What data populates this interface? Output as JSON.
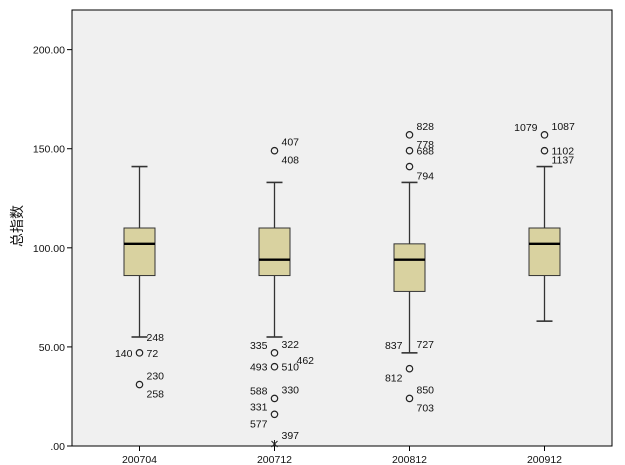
{
  "chart_data": {
    "type": "boxplot",
    "title": "",
    "xlabel": "",
    "ylabel": "总指数",
    "ylim": [
      0,
      220
    ],
    "yticks": [
      0,
      50,
      100,
      150,
      200
    ],
    "ytick_labels": [
      ".00",
      "50.00",
      "100.00",
      "150.00",
      "200.00"
    ],
    "colors": {
      "box_fill": "#d9d2a0",
      "box_stroke": "#333333",
      "median": "#000000",
      "plot_bg": "#f0f0f0"
    },
    "groups": [
      {
        "category": "200704",
        "whisker_low": 55,
        "q1": 86,
        "median": 102,
        "q3": 110,
        "whisker_high": 141,
        "outliers": [
          {
            "y": 55,
            "label": "248",
            "kind": "point",
            "side": "right"
          },
          {
            "y": 47,
            "label": "140",
            "kind": "circle",
            "side": "left"
          },
          {
            "y": 47,
            "label": "72",
            "kind": "point",
            "side": "right"
          },
          {
            "y": 31,
            "label": "230",
            "kind": "circle",
            "side": "right-up"
          },
          {
            "y": 31,
            "label": "258",
            "kind": "point",
            "side": "right-down"
          }
        ]
      },
      {
        "category": "200712",
        "whisker_low": 55,
        "q1": 86,
        "median": 94,
        "q3": 110,
        "whisker_high": 133,
        "outliers": [
          {
            "y": 149,
            "label": "407",
            "kind": "circle",
            "side": "right-up"
          },
          {
            "y": 149,
            "label": "408",
            "kind": "point",
            "side": "right-down"
          },
          {
            "y": 47,
            "label": "335",
            "kind": "circle",
            "side": "left-up"
          },
          {
            "y": 47,
            "label": "322",
            "kind": "point",
            "side": "right-up"
          },
          {
            "y": 47,
            "label": "462",
            "kind": "point",
            "side": "far-right"
          },
          {
            "y": 40,
            "label": "493",
            "kind": "point",
            "side": "left"
          },
          {
            "y": 40,
            "label": "510",
            "kind": "circle",
            "side": "right"
          },
          {
            "y": 24,
            "label": "588",
            "kind": "circle",
            "side": "left-up"
          },
          {
            "y": 24,
            "label": "330",
            "kind": "point",
            "side": "right-up"
          },
          {
            "y": 16,
            "label": "331",
            "kind": "circle",
            "side": "left-up"
          },
          {
            "y": 16,
            "label": "577",
            "kind": "point",
            "side": "left-down"
          },
          {
            "y": 1,
            "label": "397",
            "kind": "star",
            "side": "right-up"
          }
        ]
      },
      {
        "category": "200812",
        "whisker_low": 47,
        "q1": 78,
        "median": 94,
        "q3": 102,
        "whisker_high": 133,
        "outliers": [
          {
            "y": 157,
            "label": "828",
            "kind": "circle",
            "side": "right-up"
          },
          {
            "y": 157,
            "label": "778",
            "kind": "point",
            "side": "right-down"
          },
          {
            "y": 149,
            "label": "688",
            "kind": "circle",
            "side": "right"
          },
          {
            "y": 141,
            "label": "794",
            "kind": "circle",
            "side": "right-down"
          },
          {
            "y": 47,
            "label": "837",
            "kind": "point",
            "side": "left-up"
          },
          {
            "y": 47,
            "label": "727",
            "kind": "point",
            "side": "right-up"
          },
          {
            "y": 39,
            "label": "812",
            "kind": "circle",
            "side": "left-down"
          },
          {
            "y": 24,
            "label": "850",
            "kind": "circle",
            "side": "right-up"
          },
          {
            "y": 24,
            "label": "703",
            "kind": "point",
            "side": "right-down"
          }
        ]
      },
      {
        "category": "200912",
        "whisker_low": 63,
        "q1": 86,
        "median": 102,
        "q3": 110,
        "whisker_high": 141,
        "outliers": [
          {
            "y": 157,
            "label": "1079",
            "kind": "circle",
            "side": "left-up"
          },
          {
            "y": 157,
            "label": "1087",
            "kind": "point",
            "side": "right-up"
          },
          {
            "y": 149,
            "label": "1102",
            "kind": "circle",
            "side": "right"
          },
          {
            "y": 149,
            "label": "1137",
            "kind": "point",
            "side": "right-down"
          }
        ]
      }
    ]
  }
}
